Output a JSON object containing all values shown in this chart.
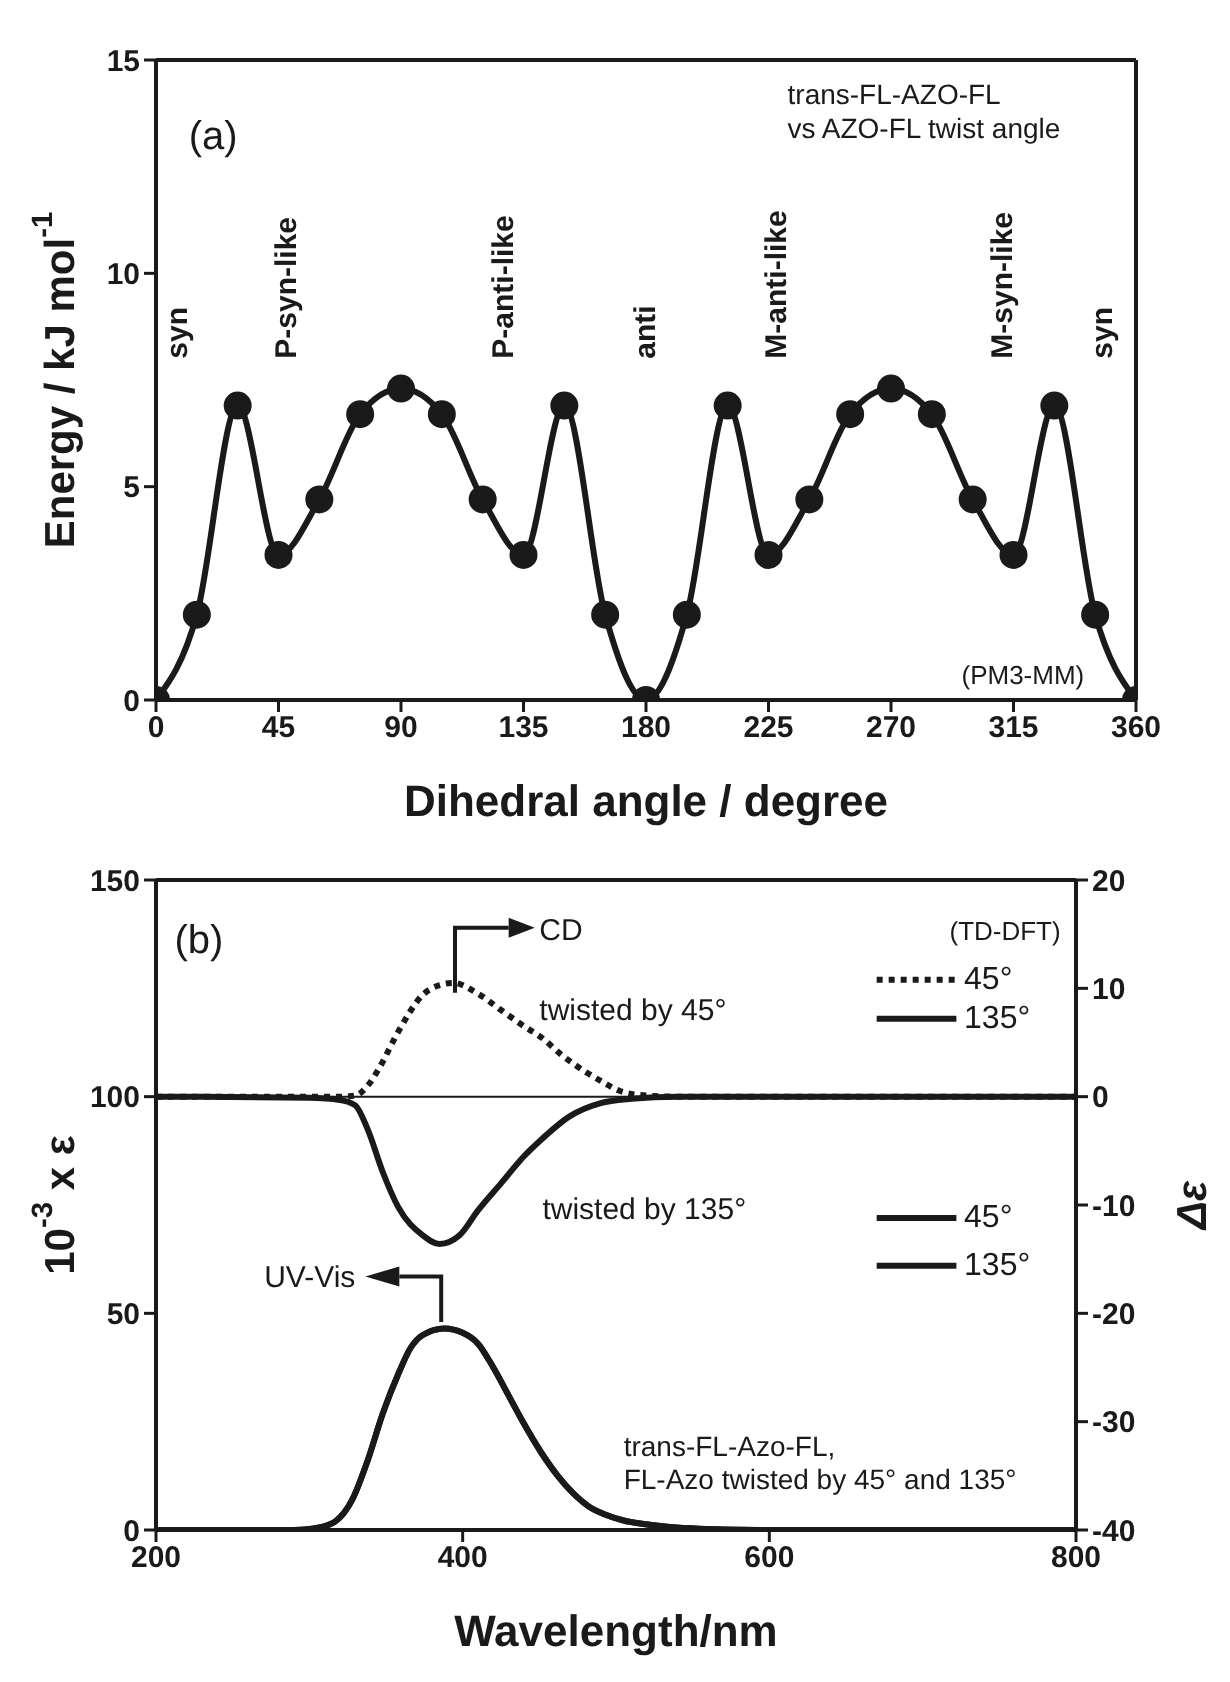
{
  "chart_data": [
    {
      "type": "line",
      "x": [
        0,
        15,
        30,
        45,
        60,
        75,
        90,
        105,
        120,
        135,
        150,
        165,
        180,
        195,
        210,
        225,
        240,
        255,
        270,
        285,
        300,
        315,
        330,
        345,
        360
      ],
      "values": [
        0,
        2,
        6.9,
        3.4,
        4.7,
        6.7,
        7.3,
        6.7,
        4.7,
        3.4,
        6.9,
        2,
        0,
        2,
        6.9,
        3.4,
        4.7,
        6.7,
        7.3,
        6.7,
        4.7,
        3.4,
        6.9,
        2,
        0
      ],
      "color": "#1a1a1a",
      "marker": "circle",
      "xlim": [
        0,
        360
      ],
      "xticks": [
        0,
        45,
        90,
        135,
        180,
        225,
        270,
        315,
        360
      ],
      "ylim": [
        0,
        15
      ],
      "yticks": [
        0,
        5,
        10,
        15
      ],
      "xlabel": "Dihedral angle / degree",
      "ylabel": "Energy / kJ mol$^{-1}$",
      "annotations": [
        "(a)",
        "trans-FL-AZO-FL\nvs AZO-FL twist angle",
        "(PM3-MM)",
        "syn",
        "P-syn-like",
        "P-anti-like",
        "anti",
        "M-anti-like",
        "M-syn-like",
        "syn"
      ]
    },
    {
      "type": "line",
      "series": [
        {
          "name": "45°",
          "color": "#1a1a1a",
          "axis": "y2",
          "line_style": "dotted",
          "x": [
            200,
            320,
            330,
            338,
            345,
            358,
            374,
            385,
            394,
            410,
            425,
            440,
            451,
            465,
            480,
            492,
            503,
            520,
            540,
            800
          ],
          "values": [
            0,
            0,
            0.1,
            1,
            2.5,
            6,
            9.4,
            10.3,
            10.5,
            9.5,
            8,
            6.5,
            5.5,
            3.8,
            2.3,
            1.3,
            0.5,
            0.1,
            0,
            0
          ]
        },
        {
          "name": "135°",
          "color": "#1a1a1a",
          "axis": "y2",
          "line_style": "solid",
          "x": [
            200,
            300,
            320,
            330,
            338,
            348,
            358,
            374,
            385,
            398,
            410,
            425,
            440,
            451,
            470,
            490,
            510,
            540,
            800
          ],
          "values": [
            0,
            -0.1,
            -0.3,
            -0.8,
            -3,
            -7,
            -10.2,
            -12.8,
            -13.6,
            -12.8,
            -10.5,
            -8,
            -5.5,
            -4,
            -1.8,
            -0.6,
            -0.2,
            0,
            0
          ]
        },
        {
          "name": "45°",
          "color": "#1a1a1a",
          "line_style": "solid",
          "x": [
            200,
            290,
            305,
            317,
            328,
            338,
            348,
            358,
            366,
            374,
            388,
            400,
            410,
            420,
            430,
            440,
            451,
            462,
            472,
            482,
            492,
            505,
            518,
            535,
            554,
            600,
            800
          ],
          "values": [
            0,
            0,
            0.5,
            2,
            7,
            16,
            27,
            36,
            42,
            45,
            46.5,
            45.5,
            43,
            37.5,
            31,
            24.5,
            18,
            12.5,
            8.5,
            5.5,
            3.7,
            2.2,
            1.4,
            0.7,
            0.3,
            0,
            0
          ]
        },
        {
          "name": "135°",
          "color": "#1a1a1a",
          "line_style": "solid",
          "x": [
            290,
            305,
            317,
            328,
            338,
            348,
            358,
            366,
            374,
            388,
            400,
            410,
            420,
            430,
            440,
            451,
            462,
            472,
            482,
            492,
            505,
            518,
            535,
            554,
            600
          ],
          "values": [
            0,
            0.5,
            2,
            7,
            16,
            27,
            36,
            42,
            45,
            46.5,
            45.5,
            43,
            37.5,
            31,
            24.5,
            18,
            12.5,
            8.5,
            5.5,
            3.7,
            2.2,
            1.4,
            0.7,
            0.3,
            0
          ]
        }
      ],
      "xlim": [
        200,
        800
      ],
      "xticks": [
        200,
        400,
        600,
        800
      ],
      "ylim": [
        0,
        150
      ],
      "yticks": [
        0,
        50,
        100,
        150
      ],
      "y2lim": [
        -40,
        20
      ],
      "y2ticks": [
        -40,
        -30,
        -20,
        -10,
        0,
        10,
        20
      ],
      "xlabel": "Wavelength/nm",
      "ylabel": "10$^{-3}$ x ε",
      "y2label": "Δε",
      "ref_lines": [
        {
          "axis": "y2",
          "value": 0
        }
      ],
      "legend": "right",
      "annotations": [
        "(b)",
        "CD",
        "(TD-DFT)",
        "twisted by 45°",
        "twisted by 135°",
        "UV-Vis",
        "trans-FL-Azo-FL,\nFL-Azo twisted by 45° and 135°"
      ]
    }
  ]
}
